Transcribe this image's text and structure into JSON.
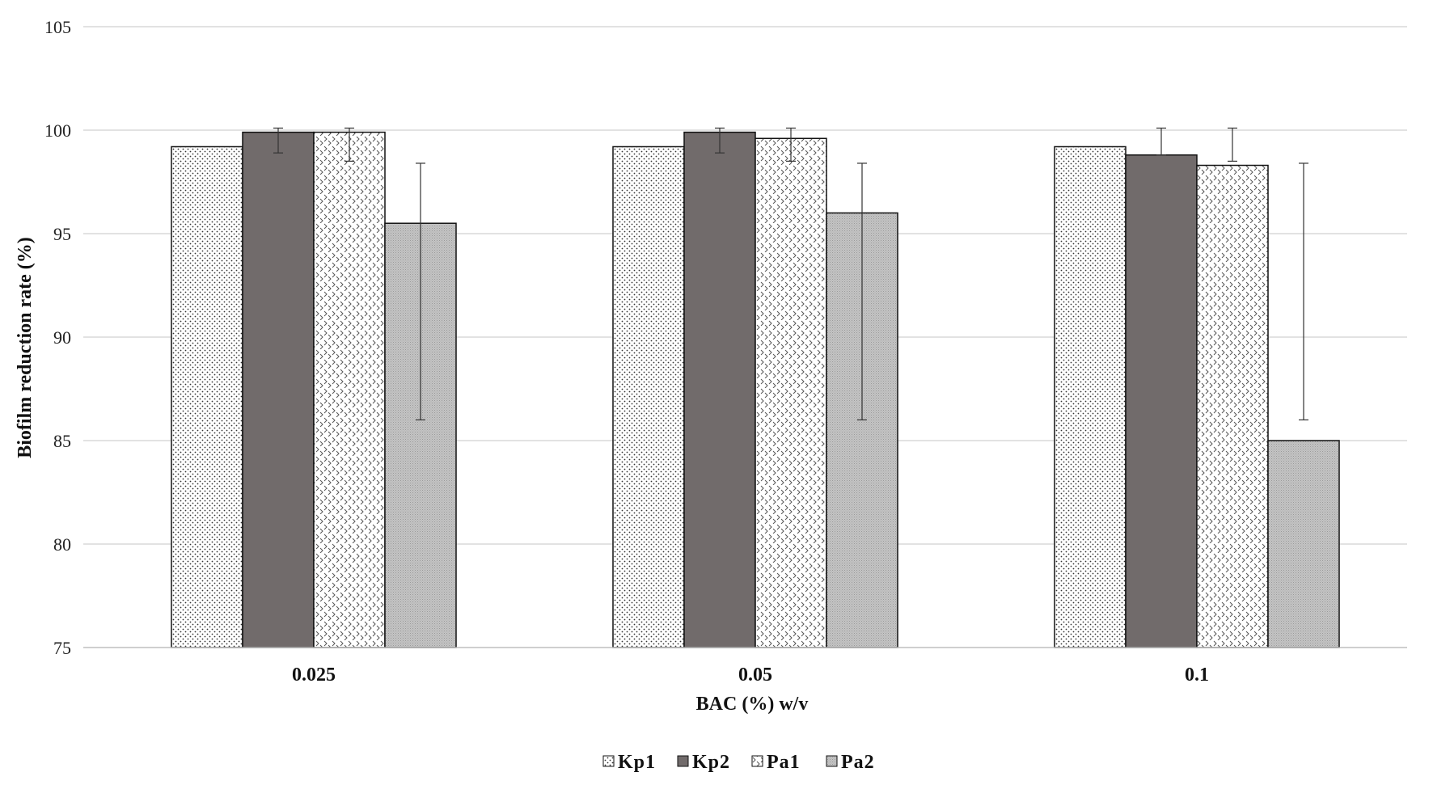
{
  "chart_data": {
    "type": "bar",
    "title": "",
    "xlabel": "BAC (%) w/v",
    "ylabel": "Biofilm reduction rate (%)",
    "ylim": [
      75,
      105
    ],
    "yticks": [
      75,
      80,
      85,
      90,
      95,
      100,
      105
    ],
    "grid": true,
    "legend_position": "bottom",
    "categories": [
      "0.025",
      "0.05",
      "0.1"
    ],
    "series": [
      {
        "name": "Kp1",
        "pattern": "dots",
        "values": [
          99.2,
          99.2,
          99.2
        ],
        "errors": [
          null,
          null,
          null
        ]
      },
      {
        "name": "Kp2",
        "pattern": "solid-dark",
        "color": "#716b6b",
        "values": [
          99.9,
          99.9,
          98.8
        ],
        "errors": [
          [
            98.9,
            100.1
          ],
          [
            98.9,
            100.1
          ],
          [
            98.8,
            100.1
          ]
        ]
      },
      {
        "name": "Pa1",
        "pattern": "zigzag",
        "values": [
          99.9,
          99.6,
          98.3
        ],
        "errors": [
          [
            98.5,
            100.1
          ],
          [
            98.5,
            100.1
          ],
          [
            98.5,
            100.1
          ]
        ]
      },
      {
        "name": "Pa2",
        "pattern": "fine-gray",
        "color": "#c8c8c8",
        "values": [
          95.5,
          96.0,
          85.0
        ],
        "errors": [
          [
            86.0,
            98.4
          ],
          [
            86.0,
            98.4
          ],
          [
            86.0,
            98.4
          ]
        ]
      }
    ]
  }
}
